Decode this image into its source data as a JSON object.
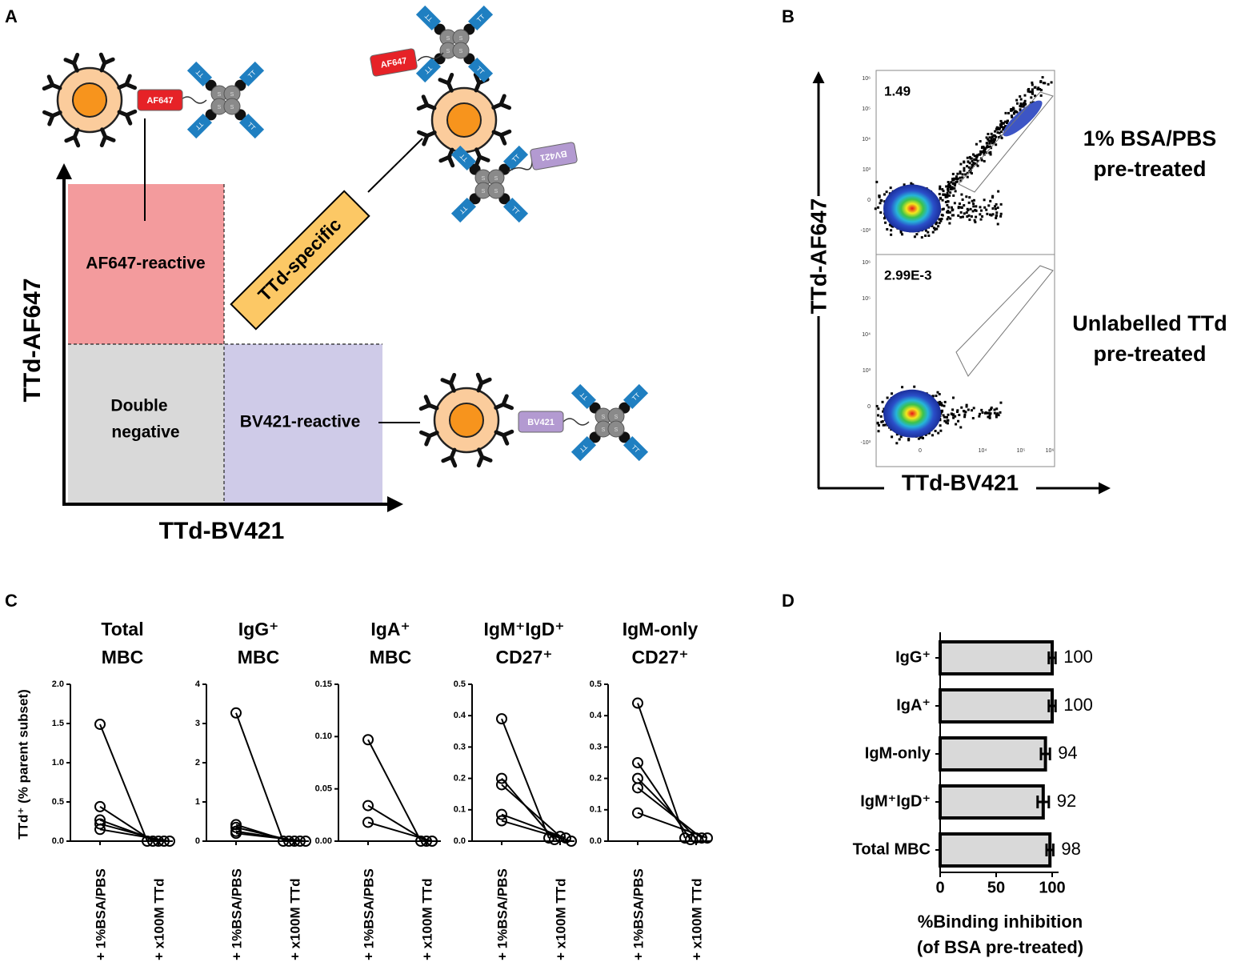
{
  "panels": [
    "A",
    "B",
    "C",
    "D"
  ],
  "panel_a": {
    "y_axis": "TTd-AF647",
    "x_axis": "TTd-BV421",
    "regions": {
      "af647": "AF647-reactive",
      "specific": "TTd-specific",
      "double_negative": [
        "Double",
        "negative"
      ],
      "bv421": "BV421-reactive"
    },
    "tags": {
      "af647": "AF647",
      "bv421": "BV421"
    },
    "tt": "TT",
    "s": "S"
  },
  "panel_b": {
    "y_axis": "TTd-AF647",
    "x_axis": "TTd-BV421",
    "plots": [
      {
        "gate_value": "1.49",
        "condition": [
          "1% BSA/PBS",
          "pre-treated"
        ]
      },
      {
        "gate_value": "2.99E-3",
        "condition": [
          "Unlabelled TTd",
          "pre-treated"
        ]
      }
    ],
    "y_ticks": [
      "10⁶",
      "10⁵",
      "10⁴",
      "10³",
      "0",
      "-10³"
    ],
    "x_ticks": [
      "0",
      "10⁴",
      "10⁵",
      "10⁶"
    ]
  },
  "chart_data": [
    {
      "type": "line",
      "title": [
        "Total",
        "MBC"
      ],
      "y_label": "TTd⁺ (% parent subset)",
      "categories": [
        "+ 1%BSA/PBS",
        "+ x100M TTd"
      ],
      "color": "#000000",
      "series": [
        {
          "values": [
            1.49,
            0
          ]
        },
        {
          "values": [
            0.44,
            0
          ]
        },
        {
          "values": [
            0.27,
            0
          ]
        },
        {
          "values": [
            0.22,
            0
          ]
        },
        {
          "values": [
            0.15,
            0
          ]
        }
      ],
      "ylim": [
        0,
        2
      ],
      "yticks": [
        {
          "value": 0,
          "label": "0.0"
        },
        {
          "value": 0.5,
          "label": "0.5"
        },
        {
          "value": 1,
          "label": "1.0"
        },
        {
          "value": 1.5,
          "label": "1.5"
        },
        {
          "value": 2,
          "label": "2.0"
        }
      ]
    },
    {
      "type": "line",
      "title": [
        "IgG⁺",
        "MBC"
      ],
      "categories": [
        "+ 1%BSA/PBS",
        "+ x100M TTd"
      ],
      "color": "#000000",
      "series": [
        {
          "values": [
            3.27,
            0
          ]
        },
        {
          "values": [
            0.42,
            0
          ]
        },
        {
          "values": [
            0.35,
            0
          ]
        },
        {
          "values": [
            0.25,
            0
          ]
        },
        {
          "values": [
            0.2,
            0
          ]
        }
      ],
      "ylim": [
        0,
        4
      ],
      "yticks": [
        0,
        1,
        2,
        3,
        4
      ]
    },
    {
      "type": "line",
      "title": [
        "IgA⁺",
        "MBC"
      ],
      "categories": [
        "+ 1%BSA/PBS",
        "+ x100M TTd"
      ],
      "color": "#000000",
      "series": [
        {
          "values": [
            0.097,
            0
          ]
        },
        {
          "values": [
            0.034,
            0
          ]
        },
        {
          "values": [
            0.018,
            0
          ]
        }
      ],
      "ylim": [
        0,
        0.15
      ],
      "yticks": [
        {
          "value": 0,
          "label": "0.00"
        },
        {
          "value": 0.05,
          "label": "0.05"
        },
        {
          "value": 0.1,
          "label": "0.10"
        },
        {
          "value": 0.15,
          "label": "0.15"
        }
      ]
    },
    {
      "type": "line",
      "title": [
        "IgM⁺IgD⁺",
        "CD27⁺"
      ],
      "categories": [
        "+ 1%BSA/PBS",
        "+ x100M TTd"
      ],
      "color": "#000000",
      "series": [
        {
          "values": [
            0.39,
            0.01
          ]
        },
        {
          "values": [
            0.2,
            0.005
          ]
        },
        {
          "values": [
            0.18,
            0.015
          ]
        },
        {
          "values": [
            0.085,
            0.01
          ]
        },
        {
          "values": [
            0.065,
            0
          ]
        }
      ],
      "ylim": [
        0,
        0.5
      ],
      "yticks": [
        {
          "value": 0,
          "label": "0.0"
        },
        0.1,
        0.2,
        0.3,
        0.4,
        0.5
      ]
    },
    {
      "type": "line",
      "title": [
        "IgM-only",
        "CD27⁺"
      ],
      "categories": [
        "+ 1%BSA/PBS",
        "+ x100M TTd"
      ],
      "color": "#000000",
      "series": [
        {
          "values": [
            0.44,
            0.01
          ]
        },
        {
          "values": [
            0.25,
            0.005
          ]
        },
        {
          "values": [
            0.2,
            0.01
          ]
        },
        {
          "values": [
            0.17,
            0.01
          ]
        },
        {
          "values": [
            0.09,
            0.01
          ]
        }
      ],
      "ylim": [
        0,
        0.5
      ],
      "yticks": [
        {
          "value": 0,
          "label": "0.0"
        },
        0.1,
        0.2,
        0.3,
        0.4,
        0.5
      ]
    },
    {
      "type": "hbar",
      "categories": [
        "IgG⁺",
        "IgA⁺",
        "IgM-only",
        "IgM⁺IgD⁺",
        "Total MBC"
      ],
      "values": [
        100,
        100,
        94,
        92,
        98
      ],
      "errors": [
        3,
        3,
        4,
        5,
        3
      ],
      "color": "#d9d9d9",
      "xlim": [
        0,
        100
      ],
      "xticks": [
        0,
        50,
        100
      ],
      "x_label": [
        "%Binding inhibition",
        "(of BSA pre-treated)"
      ]
    }
  ]
}
